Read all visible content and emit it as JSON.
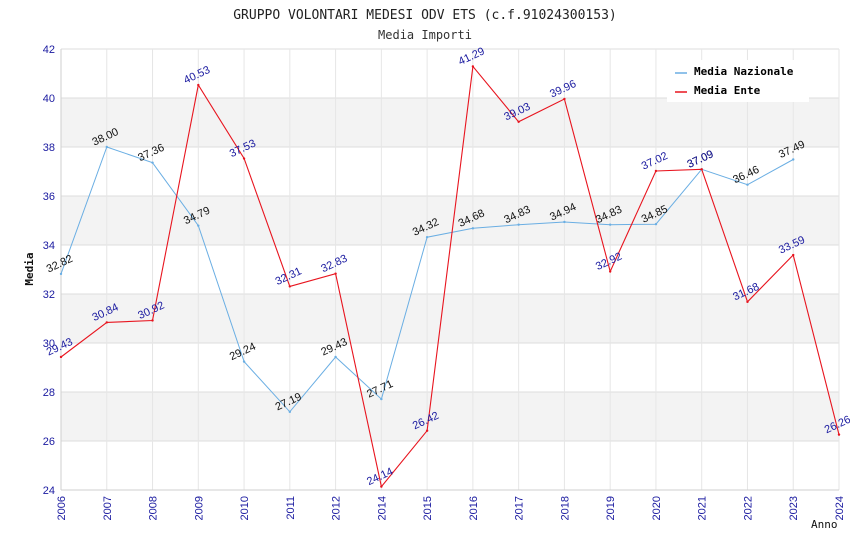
{
  "chart_data": {
    "type": "line",
    "title": "GRUPPO VOLONTARI MEDESI ODV ETS (c.f.91024300153)",
    "subtitle": "Media Importi",
    "xlabel": "Anno",
    "ylabel": "Media",
    "ylim": [
      24,
      42
    ],
    "yticks": [
      "24",
      "26",
      "28",
      "30",
      "32",
      "34",
      "36",
      "38",
      "40",
      "42"
    ],
    "categories": [
      "2006",
      "2007",
      "2008",
      "2009",
      "2010",
      "2011",
      "2012",
      "2014",
      "2015",
      "2016",
      "2017",
      "2018",
      "2019",
      "2020",
      "2021",
      "2022",
      "2023",
      "2024"
    ],
    "legend_position": "top-right",
    "series": [
      {
        "name": "Media Nazionale",
        "color": "#6aaee3",
        "values": [
          32.82,
          38.0,
          37.36,
          34.79,
          29.24,
          27.19,
          29.43,
          27.71,
          34.32,
          34.68,
          34.83,
          34.94,
          34.83,
          34.85,
          37.09,
          36.46,
          37.49,
          null
        ],
        "labels": [
          "32.82",
          "38.00",
          "37.36",
          "34.79",
          "29.24",
          "27.19",
          "29.43",
          "27.71",
          "34.32",
          "34.68",
          "34.83",
          "34.94",
          "34.83",
          "34.85",
          "37.09",
          "36.46",
          "37.49",
          null
        ]
      },
      {
        "name": "Media Ente",
        "color": "#e8141e",
        "values": [
          29.43,
          30.84,
          30.92,
          40.53,
          37.53,
          32.31,
          32.83,
          24.14,
          26.42,
          41.29,
          39.03,
          39.96,
          32.92,
          37.02,
          37.09,
          31.68,
          33.59,
          26.26
        ],
        "labels": [
          "29.43",
          "30.84",
          "30.92",
          "40.53",
          "37.53",
          "32.31",
          "32.83",
          "24.14",
          "26.42",
          "41.29",
          "39.03",
          "39.96",
          "32.92",
          "37.02",
          "37.09",
          "31.68",
          "33.59",
          "26.26"
        ]
      }
    ]
  }
}
